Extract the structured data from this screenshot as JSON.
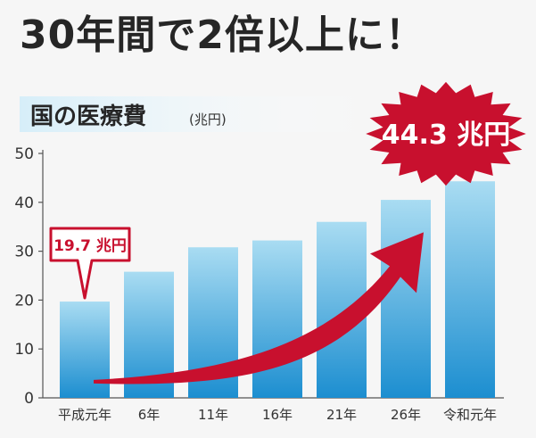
{
  "headline": "30年間で2倍以上に！",
  "chart_data": {
    "type": "bar",
    "title": "国の医療費",
    "unit": "(兆円)",
    "categories": [
      "平成元年",
      "6年",
      "11年",
      "16年",
      "21年",
      "26年",
      "令和元年"
    ],
    "values": [
      19.7,
      25.8,
      30.8,
      32.2,
      36.0,
      40.5,
      44.3
    ],
    "ylim": [
      0,
      50
    ],
    "yticks": [
      0,
      10,
      20,
      30,
      40,
      50
    ],
    "grid": false,
    "legend": "none",
    "annotations": [
      {
        "category": "平成元年",
        "text": "19.7 兆円",
        "style": "callout"
      },
      {
        "category": "令和元年",
        "text": "44.3 兆円",
        "style": "burst"
      }
    ],
    "colors": {
      "bar_top": "#a9dcf2",
      "bar_bottom": "#1c8ed0",
      "accent_red": "#c8102e",
      "title_band": "#d6eef9"
    }
  }
}
